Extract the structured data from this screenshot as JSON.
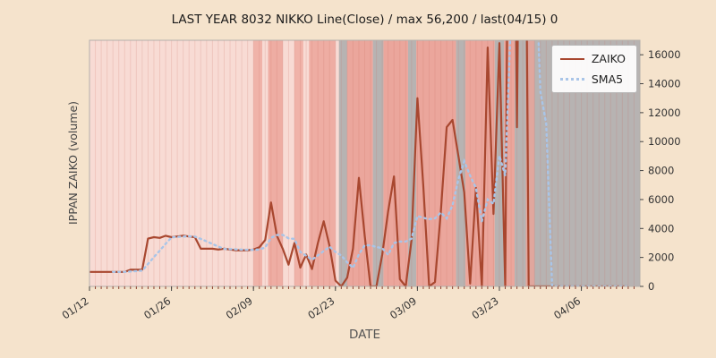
{
  "chart_data": {
    "type": "line",
    "title": "LAST YEAR 8032 NIKKO Line(Close) / max 56,200 / last(04/15) 0",
    "xlabel": "DATE",
    "ylabel": "IPPAN ZAIKO (volume)",
    "ylim": [
      0,
      17000
    ],
    "x_total_days": 94,
    "grid": "vertical-daily",
    "legend_position": "upper right",
    "x_ticks": [
      {
        "day": 0,
        "label": "01/12"
      },
      {
        "day": 14,
        "label": "01/26"
      },
      {
        "day": 28,
        "label": "02/09"
      },
      {
        "day": 42,
        "label": "02/23"
      },
      {
        "day": 56,
        "label": "03/09"
      },
      {
        "day": 70,
        "label": "03/23"
      },
      {
        "day": 84,
        "label": "04/06"
      }
    ],
    "y_ticks": [
      0,
      2000,
      4000,
      6000,
      8000,
      10000,
      12000,
      14000,
      16000
    ],
    "series": [
      {
        "name": "ZAIKO",
        "color": "#a8472f",
        "style": "solid",
        "values": [
          1000,
          1000,
          1000,
          1000,
          1000,
          1000,
          1000,
          1150,
          1150,
          1150,
          3300,
          3400,
          3350,
          3500,
          3400,
          3450,
          3500,
          3450,
          3400,
          2600,
          2600,
          2600,
          2550,
          2600,
          2550,
          2500,
          2500,
          2500,
          2550,
          2700,
          3200,
          5800,
          3500,
          2600,
          1500,
          3000,
          1300,
          2200,
          1200,
          3000,
          4500,
          2800,
          400,
          0,
          600,
          2600,
          7500,
          3500,
          0,
          0,
          2200,
          5200,
          7600,
          500,
          0,
          3200,
          13000,
          7000,
          0,
          300,
          5200,
          11000,
          11500,
          9000,
          6500,
          200,
          6800,
          0,
          16500,
          5000,
          16800,
          0,
          56200,
          11000,
          56200,
          0,
          0,
          0,
          0,
          0,
          0,
          0,
          0,
          0,
          0,
          0,
          0,
          0,
          0,
          0,
          0,
          0,
          0
        ]
      },
      {
        "name": "SMA5",
        "color": "#a9c5e8",
        "style": "dotted",
        "derived_from": "ZAIKO",
        "window": 5
      }
    ],
    "background": {
      "plot_base": "#f8dbd4",
      "day_grid_color": "rgba(200,105,95,0.18)",
      "tick_color": "#8c3f2e",
      "frame_color": "#b3afab",
      "bands": [
        {
          "from": 28,
          "to": 29.5,
          "color": "#f0b3a9"
        },
        {
          "from": 30.5,
          "to": 33,
          "color": "#eeada3"
        },
        {
          "from": 35,
          "to": 36.5,
          "color": "#f0b3a9"
        },
        {
          "from": 37.5,
          "to": 42,
          "color": "#eeada3"
        },
        {
          "from": 42.6,
          "to": 44,
          "color": "#b7b3b2"
        },
        {
          "from": 44,
          "to": 48.4,
          "color": "#eba69c"
        },
        {
          "from": 48.4,
          "to": 50.2,
          "color": "#b7b3b2"
        },
        {
          "from": 50.2,
          "to": 54.4,
          "color": "#eba69c"
        },
        {
          "from": 54.4,
          "to": 55.8,
          "color": "#b7b3b2"
        },
        {
          "from": 55.8,
          "to": 62.6,
          "color": "#eba69c"
        },
        {
          "from": 62.6,
          "to": 64.2,
          "color": "#b7b3b2"
        },
        {
          "from": 64.2,
          "to": 69.2,
          "color": "#eba69c"
        },
        {
          "from": 69.2,
          "to": 70.8,
          "color": "#b7b3b2"
        },
        {
          "from": 70.8,
          "to": 72.6,
          "color": "#eba69c"
        },
        {
          "from": 72.6,
          "to": 94,
          "color": "#b7b3b2"
        },
        {
          "from": 74.5,
          "to": 76,
          "color": "#e0a79e"
        }
      ]
    }
  }
}
